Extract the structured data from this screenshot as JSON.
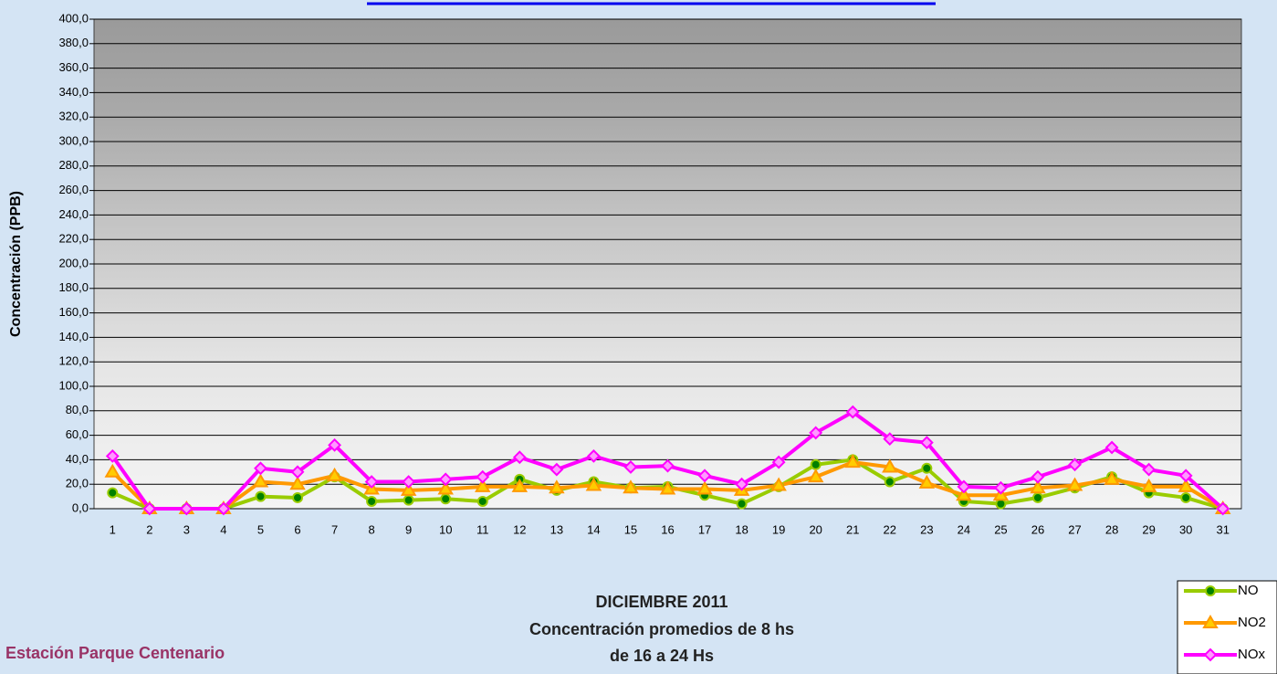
{
  "chart_data": {
    "type": "line",
    "y_label": "Concentración  (PPB)",
    "title": "DICIEMBRE 2011",
    "subtitle": "Concentración promedios de 8 hs",
    "subtitle2": "de 16 a 24 Hs",
    "station": "Estación Parque Centenario",
    "categories": [
      "1",
      "2",
      "3",
      "4",
      "5",
      "6",
      "7",
      "8",
      "9",
      "10",
      "11",
      "12",
      "13",
      "14",
      "15",
      "16",
      "17",
      "18",
      "19",
      "20",
      "21",
      "22",
      "23",
      "24",
      "25",
      "26",
      "27",
      "28",
      "29",
      "30",
      "31"
    ],
    "series": [
      {
        "name": "NO",
        "color": "#99cc00",
        "marker": "circle",
        "marker_color": "#008000",
        "values": [
          13,
          0,
          0,
          0,
          10,
          9,
          26,
          6,
          7,
          8,
          6,
          24,
          15,
          22,
          17,
          18,
          11,
          4,
          18,
          36,
          40,
          22,
          33,
          6,
          4,
          9,
          17,
          26,
          13,
          9,
          0
        ]
      },
      {
        "name": "NO2",
        "color": "#ff9900",
        "marker": "triangle",
        "marker_color": "#ffcc00",
        "values": [
          30,
          0,
          0,
          0,
          22,
          20,
          27,
          16,
          15,
          16,
          18,
          18,
          17,
          19,
          17,
          16,
          16,
          15,
          19,
          26,
          38,
          34,
          21,
          11,
          11,
          17,
          19,
          24,
          18,
          18,
          0
        ]
      },
      {
        "name": "NOx",
        "color": "#ff00ff",
        "marker": "diamond",
        "marker_color": "#ff99ff",
        "values": [
          43,
          0,
          0,
          0,
          33,
          30,
          52,
          22,
          22,
          24,
          26,
          42,
          32,
          43,
          34,
          35,
          27,
          20,
          38,
          62,
          79,
          57,
          54,
          18,
          17,
          26,
          36,
          50,
          32,
          27,
          0
        ]
      }
    ],
    "ylim": [
      0,
      400
    ],
    "yticks": [
      {
        "value": 0,
        "label": "0,0"
      },
      {
        "value": 20,
        "label": "20,0"
      },
      {
        "value": 40,
        "label": "40,0"
      },
      {
        "value": 60,
        "label": "60,0"
      },
      {
        "value": 80,
        "label": "80,0"
      },
      {
        "value": 100,
        "label": "100,0"
      },
      {
        "value": 120,
        "label": "120,0"
      },
      {
        "value": 140,
        "label": "140,0"
      },
      {
        "value": 160,
        "label": "160,0"
      },
      {
        "value": 180,
        "label": "180,0"
      },
      {
        "value": 200,
        "label": "200,0"
      },
      {
        "value": 220,
        "label": "220,0"
      },
      {
        "value": 240,
        "label": "240,0"
      },
      {
        "value": 260,
        "label": "260,0"
      },
      {
        "value": 280,
        "label": "280,0"
      },
      {
        "value": 300,
        "label": "300,0"
      },
      {
        "value": 320,
        "label": "320,0"
      },
      {
        "value": 340,
        "label": "340,0"
      },
      {
        "value": 360,
        "label": "360,0"
      },
      {
        "value": 380,
        "label": "380,0"
      },
      {
        "value": 400,
        "label": "400,0"
      }
    ],
    "grid": true
  }
}
